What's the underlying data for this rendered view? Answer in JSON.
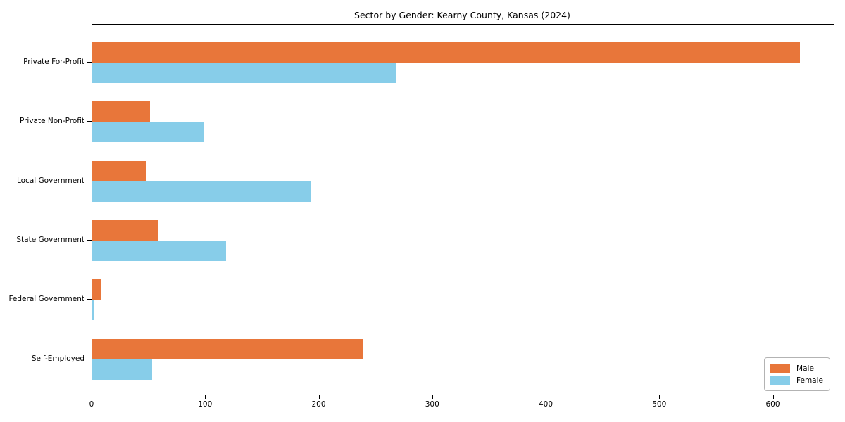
{
  "title": "Sector by Gender: Kearny County, Kansas (2024)",
  "chart_data": {
    "type": "bar",
    "orientation": "horizontal",
    "title": "Sector by Gender: Kearny County, Kansas (2024)",
    "xlabel": "",
    "ylabel": "",
    "categories": [
      "Private For-Profit",
      "Private Non-Profit",
      "Local Government",
      "State Government",
      "Federal Government",
      "Self-Employed"
    ],
    "series": [
      {
        "name": "Male",
        "color": "#e8763a",
        "values": [
          623,
          51,
          47,
          58,
          8,
          238
        ]
      },
      {
        "name": "Female",
        "color": "#87cde9",
        "values": [
          268,
          98,
          192,
          118,
          1,
          53
        ]
      }
    ],
    "xlim": [
      0,
      653
    ],
    "x_ticks": [
      0,
      100,
      200,
      300,
      400,
      500,
      600
    ],
    "grid": false,
    "legend_position": "lower right",
    "background_color": "#ffffff",
    "axis_color": "#000000"
  }
}
